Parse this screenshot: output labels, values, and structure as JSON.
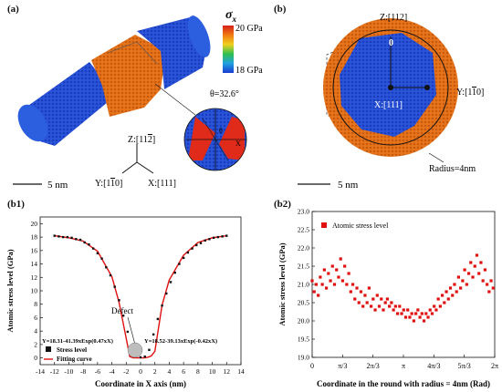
{
  "figure": {
    "panel_a": {
      "label": "(a)",
      "colorbar_symbol": "σ",
      "colorbar_subscript": "x",
      "colorbar_top": "20 GPa",
      "colorbar_bottom": "18 GPa",
      "colorbar_colors": [
        "#d4201a",
        "#f07a10",
        "#f0d020",
        "#30c050",
        "#20a0e0",
        "#1a3bd0"
      ],
      "theta_label": "θ=32.6°",
      "inset_theta": "θ",
      "inset_x": "X",
      "axis_z": "Z:[11",
      "axis_z_bar": "2",
      "axis_z_end": "]",
      "axis_y": "Y:[1",
      "axis_y_bar": "1",
      "axis_y_end": "0]",
      "axis_x": "X:[111]",
      "scale": "5 nm"
    },
    "panel_b": {
      "label": "(b)",
      "axis_z": "Z:[112]",
      "axis_y": "Y:[1",
      "axis_y_bar": "1",
      "axis_y_end": "0]",
      "axis_x": "X:[111]",
      "zero_marker": "0",
      "radius_label": "Radius=4nm",
      "scale": "5 nm"
    },
    "panel_b1": {
      "label": "(b1)",
      "ylabel": "Atomic stress level (GPa)",
      "xlabel": "Coordinate in X axis (nm)",
      "legend_points": "Stress level",
      "legend_line": "Fitting curve",
      "defect_label": "Defect",
      "eq_left": "Y=18.31-41.39xExp(0.47xX)",
      "eq_right": "Y=18.52-39.13xExp(-0.42xX)"
    },
    "panel_b2": {
      "label": "(b2)",
      "ylabel": "Atomic stress level (GPa)",
      "xlabel": "Coordinate in the round with radius = 4nm (Rad)",
      "legend_points": "Atomic stress level"
    }
  },
  "chart_data": [
    {
      "type": "scatter",
      "id": "b1",
      "x_ticks": [
        -14,
        -12,
        -10,
        -8,
        -6,
        -4,
        -2,
        0,
        2,
        4,
        6,
        8,
        10,
        12,
        14
      ],
      "y_ticks": [
        0,
        2,
        4,
        6,
        8,
        10,
        12,
        14,
        16,
        18,
        20
      ],
      "xlim": [
        -14,
        14
      ],
      "ylim": [
        -1,
        21
      ],
      "series": [
        {
          "name": "Stress level",
          "marker": "square",
          "color": "#111111",
          "x": [
            -12,
            -11.4,
            -10.8,
            -10.2,
            -9.6,
            -9,
            -8.4,
            -7.8,
            -7.2,
            -6.6,
            -6,
            -5.4,
            -4.8,
            -4.2,
            -3.6,
            -3,
            -2.4,
            -1.8,
            -1.2,
            -0.6,
            0,
            0.6,
            1.2,
            1.8,
            2.4,
            3,
            3.6,
            4.2,
            4.8,
            5.4,
            6,
            6.6,
            7.2,
            7.8,
            8.4,
            9,
            9.6,
            10.2,
            10.8,
            11.4,
            12
          ],
          "y": [
            18.2,
            18.1,
            18.0,
            18.0,
            17.9,
            17.7,
            17.6,
            17.2,
            16.9,
            16.3,
            15.6,
            14.8,
            13.5,
            12.3,
            10.6,
            8.6,
            6.3,
            3.9,
            1.4,
            0.3,
            0.1,
            0.2,
            1.2,
            3.5,
            5.8,
            7.8,
            9.6,
            11.3,
            12.7,
            14.0,
            14.9,
            15.7,
            16.3,
            16.8,
            17.1,
            17.5,
            17.7,
            17.9,
            18.0,
            18.1,
            18.2
          ]
        },
        {
          "name": "Fitting curve",
          "color": "#e01010",
          "x": [
            -12,
            -10,
            -8,
            -6,
            -4,
            -3,
            -2,
            -1.5,
            -1,
            -0.5,
            0,
            0.5,
            1,
            1.5,
            2,
            3,
            4,
            6,
            8,
            10,
            12
          ],
          "y": [
            18.2,
            17.9,
            17.4,
            15.9,
            12.1,
            8.3,
            2.9,
            0.2,
            0.0,
            0.0,
            0.0,
            0.0,
            0.1,
            0.3,
            1.0,
            7.9,
            11.6,
            15.3,
            17.2,
            17.9,
            18.2
          ]
        }
      ]
    },
    {
      "type": "scatter",
      "id": "b2",
      "x_ticks": [
        "0",
        "π/3",
        "2π/3",
        "π",
        "4π/3",
        "5π/3",
        "2π"
      ],
      "y_ticks": [
        19.0,
        19.5,
        20.0,
        20.5,
        21.0,
        21.5,
        22.0,
        22.5,
        23.0
      ],
      "xlim": [
        0,
        6.2832
      ],
      "ylim": [
        19.0,
        23.0
      ],
      "series": [
        {
          "name": "Atomic stress level",
          "marker": "square",
          "color": "#e01010",
          "x": [
            0.0,
            0.07,
            0.14,
            0.21,
            0.28,
            0.35,
            0.42,
            0.49,
            0.56,
            0.63,
            0.7,
            0.77,
            0.84,
            0.91,
            0.98,
            1.05,
            1.12,
            1.19,
            1.26,
            1.33,
            1.4,
            1.47,
            1.54,
            1.61,
            1.68,
            1.75,
            1.82,
            1.89,
            1.96,
            2.03,
            2.1,
            2.17,
            2.24,
            2.31,
            2.38,
            2.45,
            2.52,
            2.59,
            2.66,
            2.73,
            2.8,
            2.87,
            2.94,
            3.01,
            3.08,
            3.15,
            3.22,
            3.29,
            3.36,
            3.43,
            3.5,
            3.57,
            3.64,
            3.71,
            3.78,
            3.85,
            3.92,
            3.99,
            4.06,
            4.13,
            4.2,
            4.27,
            4.34,
            4.41,
            4.48,
            4.55,
            4.62,
            4.69,
            4.76,
            4.83,
            4.9,
            4.97,
            5.04,
            5.11,
            5.18,
            5.25,
            5.32,
            5.39,
            5.46,
            5.53,
            5.6,
            5.67,
            5.74,
            5.81,
            5.88,
            5.95,
            6.02,
            6.09,
            6.16,
            6.23
          ],
          "y": [
            21.1,
            20.8,
            21.0,
            20.7,
            21.2,
            21.0,
            21.4,
            20.9,
            21.3,
            21.1,
            21.5,
            21.0,
            21.4,
            21.2,
            21.7,
            21.1,
            21.5,
            21.0,
            21.3,
            20.8,
            21.0,
            20.6,
            20.9,
            20.5,
            20.8,
            20.4,
            20.7,
            20.5,
            20.9,
            20.4,
            20.6,
            20.3,
            20.7,
            20.4,
            20.6,
            20.3,
            20.5,
            20.6,
            20.4,
            20.5,
            20.3,
            20.4,
            20.2,
            20.4,
            20.2,
            20.3,
            20.1,
            20.3,
            20.1,
            20.2,
            20.0,
            20.2,
            20.3,
            20.1,
            20.2,
            20.0,
            20.2,
            20.1,
            20.3,
            20.2,
            20.4,
            20.3,
            20.6,
            20.4,
            20.7,
            20.5,
            20.8,
            20.6,
            20.9,
            20.7,
            21.0,
            20.8,
            21.2,
            20.9,
            21.1,
            21.4,
            21.0,
            21.3,
            21.6,
            21.2,
            21.5,
            21.8,
            21.3,
            21.6,
            21.1,
            21.4,
            21.0,
            20.8,
            21.1,
            20.9
          ]
        }
      ]
    }
  ]
}
